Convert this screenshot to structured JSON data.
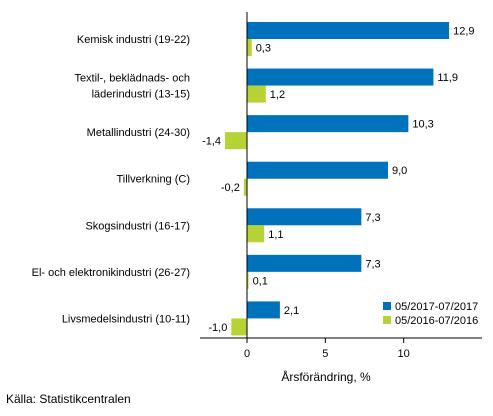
{
  "chart_data": {
    "type": "bar",
    "orientation": "horizontal",
    "categories": [
      "Kemisk industri (19-22)",
      "Textil-, beklädnads- och läderindustri (13-15)",
      "Metallindustri (24-30)",
      "Tillverkning (C)",
      "Skogsindustri (16-17)",
      "El- och elektronikindustri (26-27)",
      "Livsmedelsindustri (10-11)"
    ],
    "category_lines": [
      [
        "Kemisk industri (19-22)"
      ],
      [
        "Textil-, beklädnads- och",
        "läderindustri (13-15)"
      ],
      [
        "Metallindustri (24-30)"
      ],
      [
        "Tillverkning (C)"
      ],
      [
        "Skogsindustri (16-17)"
      ],
      [
        "El- och elektronikindustri (26-27)"
      ],
      [
        "Livsmedelsindustri (10-11)"
      ]
    ],
    "series": [
      {
        "name": "05/2017-07/2017",
        "color": "#0072bc",
        "values": [
          12.9,
          11.9,
          10.3,
          9.0,
          7.3,
          7.3,
          2.1
        ],
        "labels": [
          "12,9",
          "11,9",
          "10,3",
          "9,0",
          "7,3",
          "7,3",
          "2,1"
        ]
      },
      {
        "name": "05/2016-07/2016",
        "color": "#b5d334",
        "values": [
          0.3,
          1.2,
          -1.4,
          -0.2,
          1.1,
          0.1,
          -1.0
        ],
        "labels": [
          "0,3",
          "1,2",
          "-1,4",
          "-0,2",
          "1,1",
          "0,1",
          "-1,0"
        ]
      }
    ],
    "xlim": [
      -3,
      15
    ],
    "xticks": [
      0,
      5,
      10
    ],
    "xtick_labels": [
      "0",
      "5",
      "10"
    ],
    "xlabel": "Årsförändring, %",
    "legend_position": "bottom-right",
    "grid": false
  },
  "source": "Källa: Statistikcentralen"
}
